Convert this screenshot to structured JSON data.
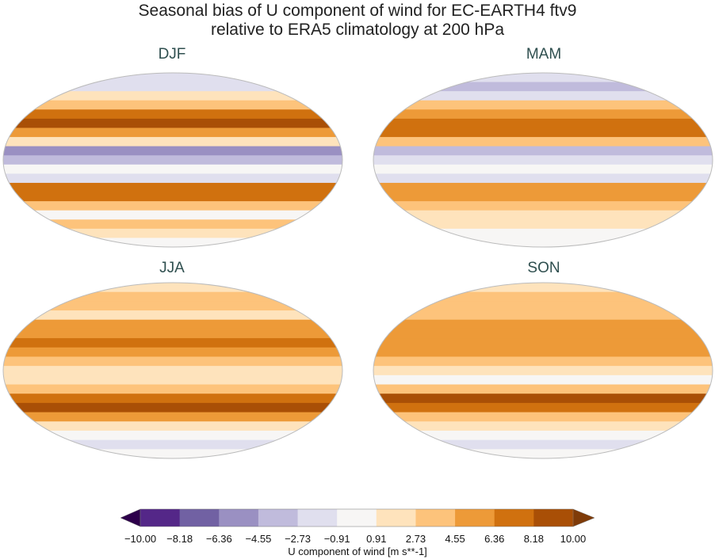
{
  "title_line1": "Seasonal bias of U component of wind for EC-EARTH4 ftv9",
  "title_line2": "relative to ERA5 climatology at 200 hPa",
  "panels": [
    {
      "label": "DJF",
      "zonal_bias_north_to_south": [
        -2,
        -1,
        2,
        3,
        8,
        9,
        6,
        2,
        -5,
        -3,
        0,
        -1,
        7,
        8,
        3,
        0,
        3,
        1,
        0
      ]
    },
    {
      "label": "MAM",
      "zonal_bias_north_to_south": [
        -2,
        -3,
        -1,
        3,
        6,
        8,
        7,
        3,
        -4,
        -2,
        0,
        -1,
        5,
        6,
        3,
        1,
        2,
        0,
        0
      ]
    },
    {
      "label": "JJA",
      "zonal_bias_north_to_south": [
        1,
        3,
        4,
        2,
        5,
        6,
        7,
        5,
        3,
        2,
        1,
        3,
        8,
        9,
        5,
        2,
        0,
        -1,
        0
      ]
    },
    {
      "label": "SON",
      "zonal_bias_north_to_south": [
        2,
        3,
        4,
        3,
        5,
        6,
        6,
        5,
        3,
        1,
        0,
        4,
        9,
        8,
        4,
        1,
        0,
        -1,
        0
      ]
    }
  ],
  "colorbar": {
    "label": "U component of wind [m s**-1]",
    "ticks": [
      "−10.00",
      "−8.18",
      "−6.36",
      "−4.55",
      "−2.73",
      "−0.91",
      "0.91",
      "2.73",
      "4.55",
      "6.36",
      "8.18",
      "10.00"
    ],
    "levels": [
      -10,
      -8.18,
      -6.36,
      -4.55,
      -2.73,
      -0.91,
      0.91,
      2.73,
      4.55,
      6.36,
      8.18,
      10
    ],
    "colors": [
      "#2d004b",
      "#542788",
      "#7161a3",
      "#9a90c2",
      "#c0bbdc",
      "#e0dfee",
      "#f7f6f5",
      "#fee3bc",
      "#fdc37b",
      "#ed9a38",
      "#d0710f",
      "#a94f06",
      "#7f3b08"
    ]
  }
}
